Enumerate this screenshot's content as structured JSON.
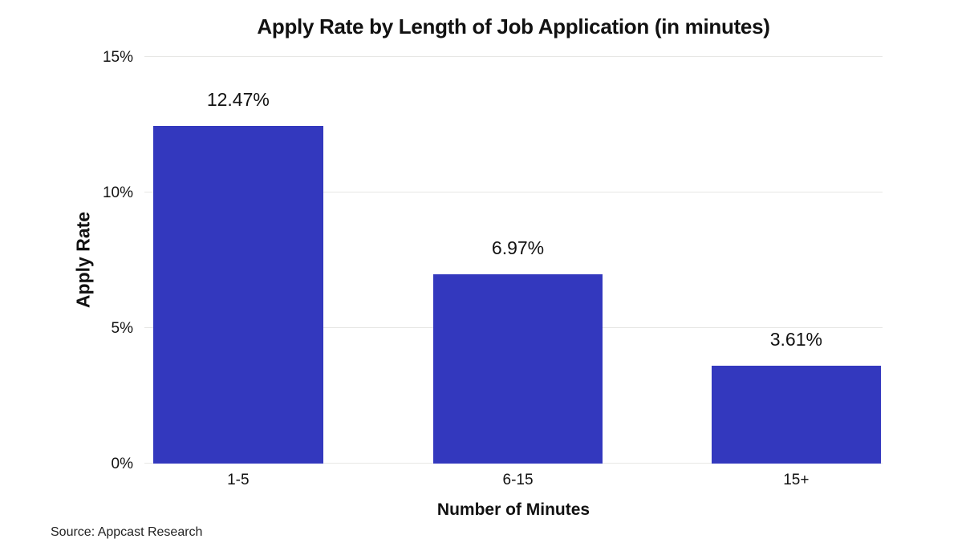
{
  "title": "Apply Rate by Length of Job Application (in minutes)",
  "source_note": "Source: Appcast Research",
  "colors": {
    "bar": "#3338be",
    "gridline": "#e7e7e5",
    "text": "#111111",
    "background": "#ffffff"
  },
  "chart_data": {
    "type": "bar",
    "title": "Apply Rate by Length of Job Application (in minutes)",
    "categories": [
      "1-5",
      "6-15",
      "15+"
    ],
    "values": [
      12.47,
      6.97,
      3.61
    ],
    "value_labels": [
      "12.47%",
      "6.97%",
      "3.61%"
    ],
    "xlabel": "Number of Minutes",
    "ylabel": "Apply Rate",
    "ylim": [
      0,
      15
    ],
    "yticks": [
      0,
      5,
      10,
      15
    ],
    "ytick_labels": [
      "0%",
      "5%",
      "10%",
      "15%"
    ],
    "grid": true,
    "legend": false,
    "bar_color": "#3338be"
  }
}
